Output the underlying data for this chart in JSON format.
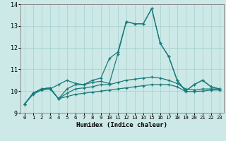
{
  "xlabel": "Humidex (Indice chaleur)",
  "xlim": [
    -0.5,
    23.5
  ],
  "ylim": [
    9,
    14
  ],
  "yticks": [
    9,
    10,
    11,
    12,
    13,
    14
  ],
  "xticks": [
    0,
    1,
    2,
    3,
    4,
    5,
    6,
    7,
    8,
    9,
    10,
    11,
    12,
    13,
    14,
    15,
    16,
    17,
    18,
    19,
    20,
    21,
    22,
    23
  ],
  "bg_color": "#cce9e7",
  "grid_color": "#aad4d2",
  "line_color": "#1a7a7a",
  "figsize": [
    3.2,
    2.0
  ],
  "dpi": 100,
  "series": [
    [
      9.4,
      9.9,
      10.1,
      10.1,
      10.3,
      10.5,
      10.35,
      10.3,
      10.5,
      10.6,
      11.5,
      11.8,
      13.2,
      13.1,
      13.1,
      13.8,
      12.2,
      11.6,
      10.5,
      10.0,
      10.3,
      10.5,
      10.2,
      10.1
    ],
    [
      9.4,
      9.9,
      10.1,
      10.15,
      9.65,
      10.1,
      10.3,
      10.3,
      10.4,
      10.45,
      10.35,
      11.7,
      13.2,
      13.1,
      13.1,
      13.8,
      12.2,
      11.6,
      10.5,
      10.0,
      10.3,
      10.5,
      10.2,
      10.1
    ],
    [
      9.4,
      9.9,
      10.1,
      10.15,
      9.65,
      9.9,
      10.1,
      10.15,
      10.2,
      10.3,
      10.3,
      10.4,
      10.5,
      10.55,
      10.6,
      10.65,
      10.6,
      10.5,
      10.35,
      10.1,
      10.05,
      10.1,
      10.1,
      10.1
    ],
    [
      9.4,
      9.85,
      10.05,
      10.1,
      9.65,
      9.75,
      9.85,
      9.9,
      9.95,
      10.0,
      10.05,
      10.1,
      10.15,
      10.2,
      10.25,
      10.3,
      10.3,
      10.3,
      10.2,
      9.98,
      9.98,
      10.0,
      10.05,
      10.05
    ]
  ]
}
